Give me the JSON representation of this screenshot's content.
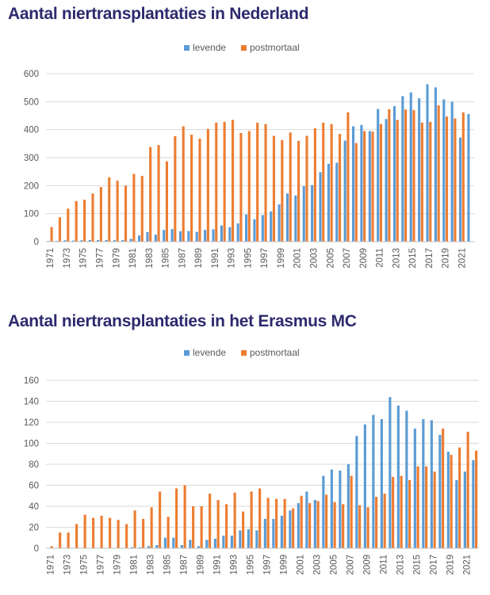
{
  "chart_data": [
    {
      "type": "bar",
      "title": "Aantal niertransplantaties in Nederland",
      "xlabel": "",
      "ylabel": "",
      "ylim": [
        0,
        600
      ],
      "yticks": [
        0,
        100,
        200,
        300,
        400,
        500,
        600
      ],
      "grid": true,
      "legend_position": "top-center",
      "categories": [
        "1971",
        "1972",
        "1973",
        "1974",
        "1975",
        "1976",
        "1977",
        "1978",
        "1979",
        "1980",
        "1981",
        "1982",
        "1983",
        "1984",
        "1985",
        "1986",
        "1987",
        "1988",
        "1989",
        "1990",
        "1991",
        "1992",
        "1993",
        "1994",
        "1995",
        "1996",
        "1997",
        "1998",
        "1999",
        "2000",
        "2001",
        "2002",
        "2003",
        "2004",
        "2005",
        "2006",
        "2007",
        "2008",
        "2009",
        "2010",
        "2011",
        "2012",
        "2013",
        "2014",
        "2015",
        "2016",
        "2017",
        "2018",
        "2019",
        "2020",
        "2021",
        "2022"
      ],
      "x_tick_labels": [
        "1971",
        "1973",
        "1975",
        "1977",
        "1979",
        "1981",
        "1983",
        "1985",
        "1987",
        "1989",
        "1991",
        "1993",
        "1995",
        "1997",
        "1999",
        "2001",
        "2003",
        "2005",
        "2007",
        "2009",
        "2011",
        "2013",
        "2015",
        "2017",
        "2019",
        "2021"
      ],
      "series": [
        {
          "name": "levende",
          "color": "#5b9bd5",
          "values": [
            2,
            3,
            5,
            4,
            5,
            6,
            6,
            6,
            5,
            6,
            10,
            22,
            34,
            25,
            42,
            45,
            37,
            38,
            35,
            42,
            44,
            58,
            52,
            65,
            97,
            80,
            95,
            108,
            133,
            172,
            165,
            198,
            202,
            248,
            278,
            282,
            361,
            412,
            417,
            395,
            474,
            438,
            484,
            520,
            533,
            512,
            562,
            551,
            508,
            500,
            372,
            456
          ]
        },
        {
          "name": "postmortaal",
          "color": "#ed7d31",
          "values": [
            52,
            87,
            118,
            145,
            150,
            172,
            195,
            230,
            218,
            200,
            242,
            235,
            338,
            345,
            287,
            377,
            412,
            382,
            368,
            403,
            425,
            428,
            435,
            388,
            395,
            425,
            420,
            378,
            363,
            390,
            360,
            378,
            405,
            425,
            420,
            385,
            462,
            352,
            395,
            393,
            420,
            473,
            435,
            472,
            470,
            425,
            428,
            487,
            447,
            440,
            462,
            0
          ]
        }
      ]
    },
    {
      "type": "bar",
      "title": "Aantal niertransplantaties in het Erasmus MC",
      "xlabel": "",
      "ylabel": "",
      "ylim": [
        0,
        160
      ],
      "yticks": [
        0,
        20,
        40,
        60,
        80,
        100,
        120,
        140,
        160
      ],
      "grid": true,
      "legend_position": "top-center",
      "categories": [
        "1971",
        "1972",
        "1973",
        "1974",
        "1975",
        "1976",
        "1977",
        "1978",
        "1979",
        "1980",
        "1981",
        "1982",
        "1983",
        "1984",
        "1985",
        "1986",
        "1987",
        "1988",
        "1989",
        "1990",
        "1991",
        "1992",
        "1993",
        "1994",
        "1995",
        "1996",
        "1997",
        "1998",
        "1999",
        "2000",
        "2001",
        "2002",
        "2003",
        "2004",
        "2005",
        "2006",
        "2007",
        "2008",
        "2009",
        "2010",
        "2011",
        "2012",
        "2013",
        "2014",
        "2015",
        "2016",
        "2017",
        "2018",
        "2019",
        "2020",
        "2021",
        "2022"
      ],
      "x_tick_labels": [
        "1971",
        "1973",
        "1975",
        "1977",
        "1979",
        "1981",
        "1983",
        "1985",
        "1987",
        "1989",
        "1991",
        "1993",
        "1995",
        "1997",
        "1999",
        "2001",
        "2003",
        "2005",
        "2007",
        "2009",
        "2011",
        "2013",
        "2015",
        "2017",
        "2019",
        "2021"
      ],
      "series": [
        {
          "name": "levende",
          "color": "#5b9bd5",
          "values": [
            0,
            0,
            0,
            0,
            0,
            0,
            0,
            0,
            0,
            0,
            1,
            1,
            2,
            3,
            10,
            10,
            3,
            8,
            2,
            8,
            9,
            12,
            12,
            17,
            18,
            17,
            28,
            28,
            31,
            36,
            43,
            54,
            46,
            69,
            75,
            74,
            80,
            107,
            118,
            127,
            123,
            144,
            136,
            131,
            114,
            123,
            122,
            108,
            92,
            65,
            73,
            84
          ]
        },
        {
          "name": "postmortaal",
          "color": "#ed7d31",
          "values": [
            2,
            15,
            15,
            23,
            32,
            29,
            31,
            29,
            27,
            23,
            36,
            28,
            39,
            54,
            30,
            57,
            60,
            40,
            40,
            52,
            46,
            42,
            53,
            35,
            54,
            57,
            48,
            47,
            47,
            38,
            50,
            43,
            45,
            51,
            44,
            42,
            69,
            41,
            39,
            49,
            52,
            68,
            69,
            65,
            78,
            78,
            73,
            114,
            89,
            96,
            111,
            93
          ]
        }
      ]
    }
  ]
}
